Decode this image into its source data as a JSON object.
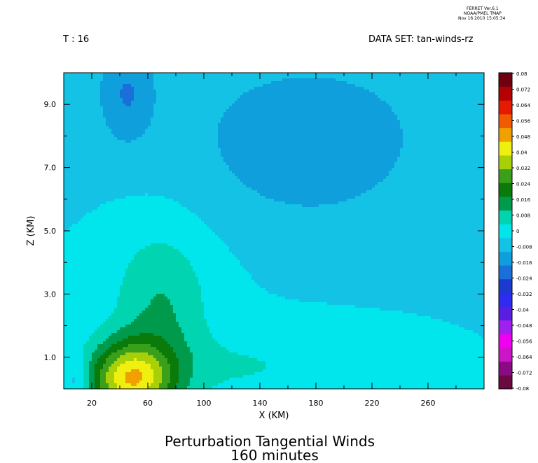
{
  "header": {
    "ferret_lines": [
      "FERRET  Ver.6.1",
      "NOAA/PMEL TMAP",
      "Nov 16 2010 15:05:34"
    ],
    "time_label": "T : 16",
    "dataset_label": "DATA SET: tan-winds-rz"
  },
  "chart_data": {
    "type": "heatmap",
    "title": "Perturbation Tangential Winds",
    "subtitle": "160 minutes",
    "xlabel": "X (KM)",
    "ylabel": "Z (KM)",
    "xlim": [
      0,
      300
    ],
    "ylim": [
      0,
      10
    ],
    "x_ticks": [
      20,
      60,
      100,
      140,
      180,
      220,
      260
    ],
    "y_ticks": [
      1.0,
      3.0,
      5.0,
      7.0,
      9.0
    ],
    "colorbar": {
      "levels": [
        -0.08,
        -0.072,
        -0.064,
        -0.056,
        -0.048,
        -0.04,
        -0.032,
        -0.024,
        -0.016,
        -0.008,
        0,
        0.008,
        0.016,
        0.024,
        0.032,
        0.04,
        0.048,
        0.056,
        0.064,
        0.072,
        0.08
      ],
      "tick_labels": [
        "0.08",
        "0.072",
        "0.064",
        "0.056",
        "0.048",
        "0.04",
        "0.032",
        "0.024",
        "0.016",
        "0.008",
        "0",
        "-0.008",
        "-0.016",
        "-0.024",
        "-0.032",
        "-0.04",
        "-0.048",
        "-0.056",
        "-0.064",
        "-0.072",
        "-0.08"
      ],
      "colors": [
        "#6b0a3e",
        "#8a0a84",
        "#cb15c6",
        "#f000f0",
        "#a020ee",
        "#5a1ee0",
        "#2d2cf0",
        "#1a3ad0",
        "#1a70d8",
        "#0f9fdc",
        "#14c2e6",
        "#00e6ec",
        "#00d4b0",
        "#009a4c",
        "#0a7a0a",
        "#3aa01a",
        "#a8d008",
        "#f0f010",
        "#f0a000",
        "#f05a00",
        "#e61a00",
        "#b40000",
        "#6e0010"
      ]
    },
    "features": [
      {
        "kind": "maximum",
        "x": 48,
        "z": 0.3,
        "value": 0.05
      },
      {
        "kind": "minimum",
        "x": 45,
        "z": 9.3,
        "value": -0.013
      },
      {
        "kind": "minimum",
        "x": 175,
        "z": 7.5,
        "value": -0.011
      },
      {
        "kind": "minimum",
        "x": 10,
        "z": 0.3,
        "value": -0.01
      }
    ]
  }
}
